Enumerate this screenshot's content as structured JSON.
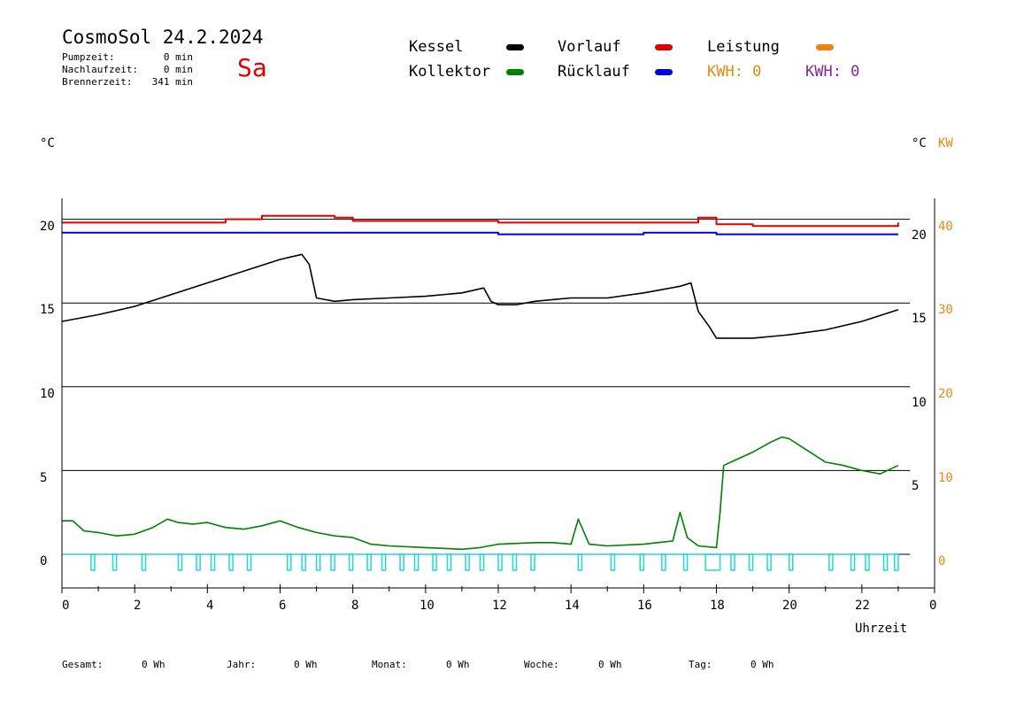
{
  "header": {
    "title": "CosmoSol 24.2.2024",
    "day": "Sa",
    "stats": [
      {
        "label": "Pumpzeit:",
        "value": "0 min"
      },
      {
        "label": "Nachlaufzeit:",
        "value": "0 min"
      },
      {
        "label": "Brennerzeit:",
        "value": "341 min"
      }
    ]
  },
  "legend": {
    "kessel": {
      "label": "Kessel",
      "color": "#000000"
    },
    "vorlauf": {
      "label": "Vorlauf",
      "color": "#e00000"
    },
    "leistung": {
      "label": "Leistung",
      "color": "#f08010"
    },
    "kollektor": {
      "label": "Kollektor",
      "color": "#008000"
    },
    "ruecklauf": {
      "label": "Rücklauf",
      "color": "#0000e0"
    },
    "kwh1": "KWH: 0",
    "kwh2": "KWH: 0"
  },
  "axes": {
    "left_unit": "°C",
    "right_unit": "°C",
    "right_unit2": "KW",
    "left_ticks": [
      "20",
      "15",
      "10",
      "5",
      "0"
    ],
    "right_inner_ticks": [
      "20",
      "15",
      "10",
      "5"
    ],
    "right_outer_ticks": [
      "40",
      "30",
      "20",
      "10",
      "0"
    ],
    "x_ticks": [
      "0",
      "2",
      "4",
      "6",
      "8",
      "10",
      "12",
      "14",
      "16",
      "18",
      "20",
      "22",
      "0"
    ],
    "x_label": "Uhrzeit"
  },
  "footer": [
    {
      "label": "Gesamt:",
      "value": "0 Wh"
    },
    {
      "label": "Jahr:",
      "value": "0 Wh"
    },
    {
      "label": "Monat:",
      "value": "0 Wh"
    },
    {
      "label": "Woche:",
      "value": "0 Wh"
    },
    {
      "label": "Tag:",
      "value": "0 Wh"
    }
  ],
  "chart_data": {
    "type": "line",
    "xlabel": "Uhrzeit",
    "ylabel": "°C",
    "xlim": [
      0,
      24
    ],
    "ylim": [
      -2,
      22
    ],
    "y2lim": [
      -4,
      44
    ],
    "grid": true,
    "series": [
      {
        "name": "Vorlauf",
        "color": "#e00000",
        "x": [
          0,
          2.5,
          4.5,
          5.5,
          7.5,
          8,
          11.5,
          12,
          15,
          17.5,
          18,
          19,
          21,
          23
        ],
        "y": [
          19.8,
          19.8,
          20.0,
          20.2,
          20.1,
          19.9,
          19.9,
          19.8,
          19.8,
          20.1,
          19.7,
          19.6,
          19.6,
          19.8
        ]
      },
      {
        "name": "Rücklauf",
        "color": "#0000e0",
        "x": [
          0,
          2,
          4,
          6,
          8,
          10,
          12,
          14,
          16,
          18,
          20,
          22,
          23
        ],
        "y": [
          19.2,
          19.2,
          19.2,
          19.2,
          19.2,
          19.2,
          19.1,
          19.1,
          19.2,
          19.1,
          19.1,
          19.1,
          19.1
        ]
      },
      {
        "name": "Kessel",
        "color": "#000000",
        "x": [
          0,
          1,
          2,
          3,
          4,
          5,
          6,
          6.6,
          6.8,
          7.0,
          7.5,
          8,
          9,
          10,
          11,
          11.6,
          11.8,
          12,
          12.5,
          13,
          14,
          15,
          16,
          17,
          17.3,
          17.5,
          17.8,
          18.0,
          19,
          20,
          21,
          22,
          23
        ],
        "y": [
          13.9,
          14.3,
          14.8,
          15.5,
          16.2,
          16.9,
          17.6,
          17.9,
          17.3,
          15.3,
          15.1,
          15.2,
          15.3,
          15.4,
          15.6,
          15.9,
          15.1,
          14.9,
          14.9,
          15.1,
          15.3,
          15.3,
          15.6,
          16.0,
          16.2,
          14.5,
          13.6,
          12.9,
          12.9,
          13.1,
          13.4,
          13.9,
          14.6
        ]
      },
      {
        "name": "Kollektor",
        "color": "#008000",
        "x": [
          0,
          0.3,
          0.6,
          1,
          1.5,
          2,
          2.5,
          2.9,
          3.2,
          3.6,
          4,
          4.5,
          5,
          5.5,
          6,
          6.5,
          7,
          7.5,
          8,
          8.5,
          9,
          10,
          11,
          11.5,
          12,
          13,
          13.5,
          14,
          14.2,
          14.5,
          15,
          16,
          16.8,
          17.0,
          17.2,
          17.5,
          18.0,
          18.1,
          18.2,
          18.5,
          19,
          19.5,
          19.8,
          20,
          20.5,
          21,
          21.5,
          22,
          22.5,
          23
        ],
        "y": [
          2.0,
          2.0,
          1.4,
          1.3,
          1.1,
          1.2,
          1.6,
          2.1,
          1.9,
          1.8,
          1.9,
          1.6,
          1.5,
          1.7,
          2.0,
          1.6,
          1.3,
          1.1,
          1.0,
          0.6,
          0.5,
          0.4,
          0.3,
          0.4,
          0.6,
          0.7,
          0.7,
          0.6,
          2.1,
          0.6,
          0.5,
          0.6,
          0.8,
          2.5,
          1.0,
          0.5,
          0.4,
          2.5,
          5.3,
          5.6,
          6.1,
          6.7,
          7.0,
          6.9,
          6.2,
          5.5,
          5.3,
          5.0,
          4.8,
          5.3
        ]
      }
    ],
    "leistung_pulses": [
      [
        0.8,
        0.9
      ],
      [
        1.4,
        1.5
      ],
      [
        2.2,
        2.3
      ],
      [
        3.2,
        3.3
      ],
      [
        3.7,
        3.8
      ],
      [
        4.1,
        4.2
      ],
      [
        4.6,
        4.7
      ],
      [
        5.1,
        5.2
      ],
      [
        6.2,
        6.3
      ],
      [
        6.6,
        6.7
      ],
      [
        7.0,
        7.1
      ],
      [
        7.4,
        7.5
      ],
      [
        7.9,
        8.0
      ],
      [
        8.4,
        8.5
      ],
      [
        8.8,
        8.9
      ],
      [
        9.3,
        9.4
      ],
      [
        9.7,
        9.8
      ],
      [
        10.2,
        10.3
      ],
      [
        10.6,
        10.7
      ],
      [
        11.1,
        11.2
      ],
      [
        11.5,
        11.6
      ],
      [
        12.0,
        12.1
      ],
      [
        12.4,
        12.5
      ],
      [
        12.9,
        13.0
      ],
      [
        14.2,
        14.3
      ],
      [
        15.1,
        15.2
      ],
      [
        15.9,
        16.0
      ],
      [
        16.5,
        16.6
      ],
      [
        17.1,
        17.2
      ],
      [
        17.7,
        18.1
      ],
      [
        18.4,
        18.5
      ],
      [
        18.9,
        19.0
      ],
      [
        19.4,
        19.5
      ],
      [
        20.0,
        20.1
      ],
      [
        21.1,
        21.2
      ],
      [
        21.7,
        21.8
      ],
      [
        22.1,
        22.2
      ],
      [
        22.6,
        22.7
      ],
      [
        22.9,
        23.0
      ]
    ]
  }
}
